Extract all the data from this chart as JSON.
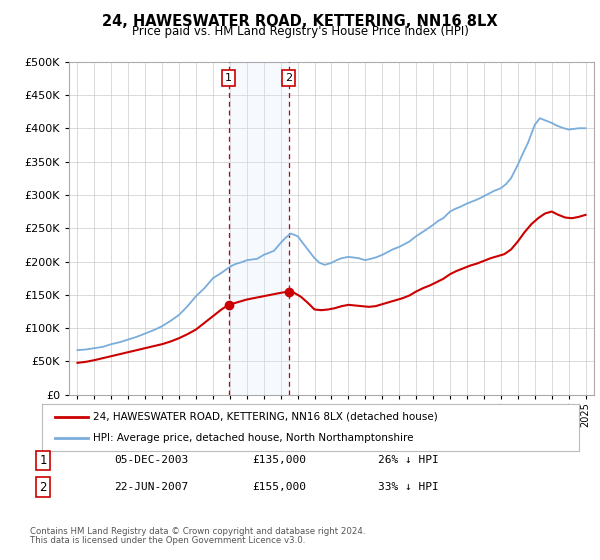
{
  "title": "24, HAWESWATER ROAD, KETTERING, NN16 8LX",
  "subtitle": "Price paid vs. HM Land Registry's House Price Index (HPI)",
  "legend_line1": "24, HAWESWATER ROAD, KETTERING, NN16 8LX (detached house)",
  "legend_line2": "HPI: Average price, detached house, North Northamptonshire",
  "footnote1": "Contains HM Land Registry data © Crown copyright and database right 2024.",
  "footnote2": "This data is licensed under the Open Government Licence v3.0.",
  "sale1_label": "1",
  "sale2_label": "2",
  "sale1_date": "05-DEC-2003",
  "sale1_price": "£135,000",
  "sale1_hpi": "26% ↓ HPI",
  "sale2_date": "22-JUN-2007",
  "sale2_price": "£155,000",
  "sale2_hpi": "33% ↓ HPI",
  "sale1_x": 2003.92,
  "sale2_x": 2007.47,
  "sale1_y": 135000,
  "sale2_y": 155000,
  "price_color": "#cc0000",
  "hpi_color": "#7aaddb",
  "shade_color": "#ddeeff",
  "ylim": [
    0,
    500000
  ],
  "xlim": [
    1994.5,
    2025.5
  ],
  "background_color": "#ffffff",
  "grid_color": "#cccccc",
  "hpi_data_x": [
    1995.0,
    1995.5,
    1996.0,
    1996.5,
    1997.0,
    1997.5,
    1998.0,
    1998.5,
    1999.0,
    1999.5,
    2000.0,
    2000.5,
    2001.0,
    2001.5,
    2002.0,
    2002.5,
    2003.0,
    2003.5,
    2004.0,
    2004.3,
    2004.7,
    2005.0,
    2005.3,
    2005.6,
    2006.0,
    2006.3,
    2006.6,
    2007.0,
    2007.3,
    2007.6,
    2008.0,
    2008.3,
    2008.6,
    2009.0,
    2009.3,
    2009.6,
    2010.0,
    2010.3,
    2010.6,
    2011.0,
    2011.3,
    2011.6,
    2012.0,
    2012.3,
    2012.6,
    2013.0,
    2013.3,
    2013.6,
    2014.0,
    2014.3,
    2014.6,
    2015.0,
    2015.3,
    2015.6,
    2016.0,
    2016.3,
    2016.6,
    2017.0,
    2017.3,
    2017.6,
    2018.0,
    2018.3,
    2018.6,
    2019.0,
    2019.3,
    2019.6,
    2020.0,
    2020.3,
    2020.6,
    2021.0,
    2021.3,
    2021.6,
    2022.0,
    2022.3,
    2022.6,
    2023.0,
    2023.3,
    2023.6,
    2024.0,
    2024.3,
    2024.6,
    2025.0
  ],
  "hpi_data_y": [
    67000,
    68000,
    70000,
    72000,
    76000,
    79000,
    83000,
    87000,
    92000,
    97000,
    103000,
    111000,
    120000,
    133000,
    148000,
    160000,
    175000,
    183000,
    192000,
    196000,
    199000,
    202000,
    203000,
    204000,
    210000,
    213000,
    216000,
    228000,
    236000,
    242000,
    238000,
    228000,
    218000,
    205000,
    198000,
    195000,
    198000,
    202000,
    205000,
    207000,
    206000,
    205000,
    202000,
    204000,
    206000,
    210000,
    214000,
    218000,
    222000,
    226000,
    230000,
    238000,
    243000,
    248000,
    255000,
    261000,
    265000,
    275000,
    279000,
    282000,
    287000,
    290000,
    293000,
    298000,
    302000,
    306000,
    310000,
    316000,
    325000,
    345000,
    362000,
    378000,
    405000,
    415000,
    412000,
    408000,
    404000,
    401000,
    398000,
    399000,
    400000,
    400000
  ],
  "price_data_x": [
    1995.0,
    1995.5,
    1996.0,
    1996.5,
    1997.0,
    1997.5,
    1998.0,
    1998.5,
    1999.0,
    1999.5,
    2000.0,
    2000.5,
    2001.0,
    2001.5,
    2002.0,
    2002.5,
    2003.0,
    2003.5,
    2003.92,
    2004.2,
    2004.6,
    2005.0,
    2005.4,
    2005.8,
    2006.2,
    2006.6,
    2007.0,
    2007.47,
    2007.8,
    2008.2,
    2008.6,
    2009.0,
    2009.4,
    2009.8,
    2010.2,
    2010.6,
    2011.0,
    2011.4,
    2011.8,
    2012.2,
    2012.6,
    2013.0,
    2013.4,
    2013.8,
    2014.2,
    2014.6,
    2015.0,
    2015.4,
    2015.8,
    2016.2,
    2016.6,
    2017.0,
    2017.4,
    2017.8,
    2018.2,
    2018.6,
    2019.0,
    2019.4,
    2019.8,
    2020.2,
    2020.6,
    2021.0,
    2021.4,
    2021.8,
    2022.2,
    2022.6,
    2023.0,
    2023.4,
    2023.8,
    2024.2,
    2024.6,
    2025.0
  ],
  "price_data_y": [
    48000,
    49500,
    52000,
    55000,
    58000,
    61000,
    64000,
    67000,
    70000,
    73000,
    76000,
    80000,
    85000,
    91000,
    98000,
    108000,
    118000,
    128000,
    135000,
    137000,
    140000,
    143000,
    145000,
    147000,
    149000,
    151000,
    153000,
    155000,
    153000,
    147000,
    138000,
    128000,
    127000,
    128000,
    130000,
    133000,
    135000,
    134000,
    133000,
    132000,
    133000,
    136000,
    139000,
    142000,
    145000,
    149000,
    155000,
    160000,
    164000,
    169000,
    174000,
    181000,
    186000,
    190000,
    194000,
    197000,
    201000,
    205000,
    208000,
    211000,
    218000,
    230000,
    244000,
    256000,
    265000,
    272000,
    275000,
    270000,
    266000,
    265000,
    267000,
    270000
  ]
}
